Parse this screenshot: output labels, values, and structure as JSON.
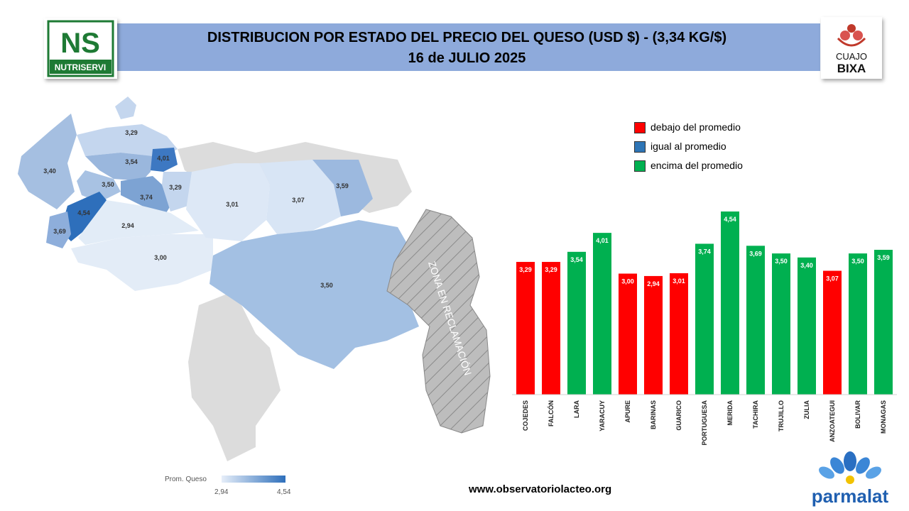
{
  "header": {
    "title_line1": "DISTRIBUCION POR ESTADO DEL PRECIO DEL QUESO (USD $)  - (3,34 KG/$)",
    "title_line2": "16 de JULIO 2025"
  },
  "logos": {
    "left_logo_text": "NUTRISERVI",
    "left_logo_mark": "NS",
    "right_logo_line1": "CUAJO",
    "right_logo_line2": "BIXA",
    "bottom_logo_text": "parmalat"
  },
  "legend": {
    "items": [
      {
        "label": "debajo del promedio",
        "color": "#ff0000"
      },
      {
        "label": "igual al promedio",
        "color": "#2e75b6"
      },
      {
        "label": "encima del promedio",
        "color": "#00b050"
      }
    ]
  },
  "map": {
    "zone_label": "ZONA EN RECLAMACIÓN",
    "scale_title": "Prom. Queso",
    "scale_min": "2,94",
    "scale_max": "4,54",
    "state_values": [
      {
        "state": "FALCÓN",
        "value": "3,29"
      },
      {
        "state": "ZULIA",
        "value": "3,40"
      },
      {
        "state": "LARA",
        "value": "3,54"
      },
      {
        "state": "YARACUY",
        "value": "4,01"
      },
      {
        "state": "TRUJILLO",
        "value": "3,50"
      },
      {
        "state": "PORTUGUESA",
        "value": "3,74"
      },
      {
        "state": "COJEDES",
        "value": "3,29"
      },
      {
        "state": "MERIDA",
        "value": "4,54"
      },
      {
        "state": "TACHIRA",
        "value": "3,69"
      },
      {
        "state": "BARINAS",
        "value": "2,94"
      },
      {
        "state": "APURE",
        "value": "3,00"
      },
      {
        "state": "GUARICO",
        "value": "3,01"
      },
      {
        "state": "ANZOATEGUI",
        "value": "3,07"
      },
      {
        "state": "MONAGAS",
        "value": "3,59"
      },
      {
        "state": "BOLIVAR",
        "value": "3,50"
      }
    ]
  },
  "footer": {
    "url": "www.observatoriolacteo.org"
  },
  "colors": {
    "below": "#ff0000",
    "equal": "#2e75b6",
    "above": "#00b050",
    "title_band": "#8eaadb"
  },
  "chart_data": {
    "type": "bar",
    "categories": [
      "COJEDES",
      "FALCÓN",
      "LARA",
      "YARACUY",
      "APURE",
      "BARINAS",
      "GUARICO",
      "PORTUGUESA",
      "MERIDA",
      "TACHIRA",
      "TRUJILLO",
      "ZULIA",
      "ANZOATEGUI",
      "BOLIVAR",
      "MONAGAS"
    ],
    "values": [
      3.29,
      3.29,
      3.54,
      4.01,
      3.0,
      2.94,
      3.01,
      3.74,
      4.54,
      3.69,
      3.5,
      3.4,
      3.07,
      3.5,
      3.59
    ],
    "value_labels": [
      "3,29",
      "3,29",
      "3,54",
      "4,01",
      "3,00",
      "2,94",
      "3,01",
      "3,74",
      "4,54",
      "3,69",
      "3,50",
      "3,40",
      "3,07",
      "3,50",
      "3,59"
    ],
    "status": [
      "below",
      "below",
      "above",
      "above",
      "below",
      "below",
      "below",
      "above",
      "above",
      "above",
      "above",
      "above",
      "below",
      "above",
      "above"
    ],
    "title": "",
    "xlabel": "",
    "ylabel": "",
    "ylim": [
      0,
      4.54
    ],
    "grid": false
  }
}
